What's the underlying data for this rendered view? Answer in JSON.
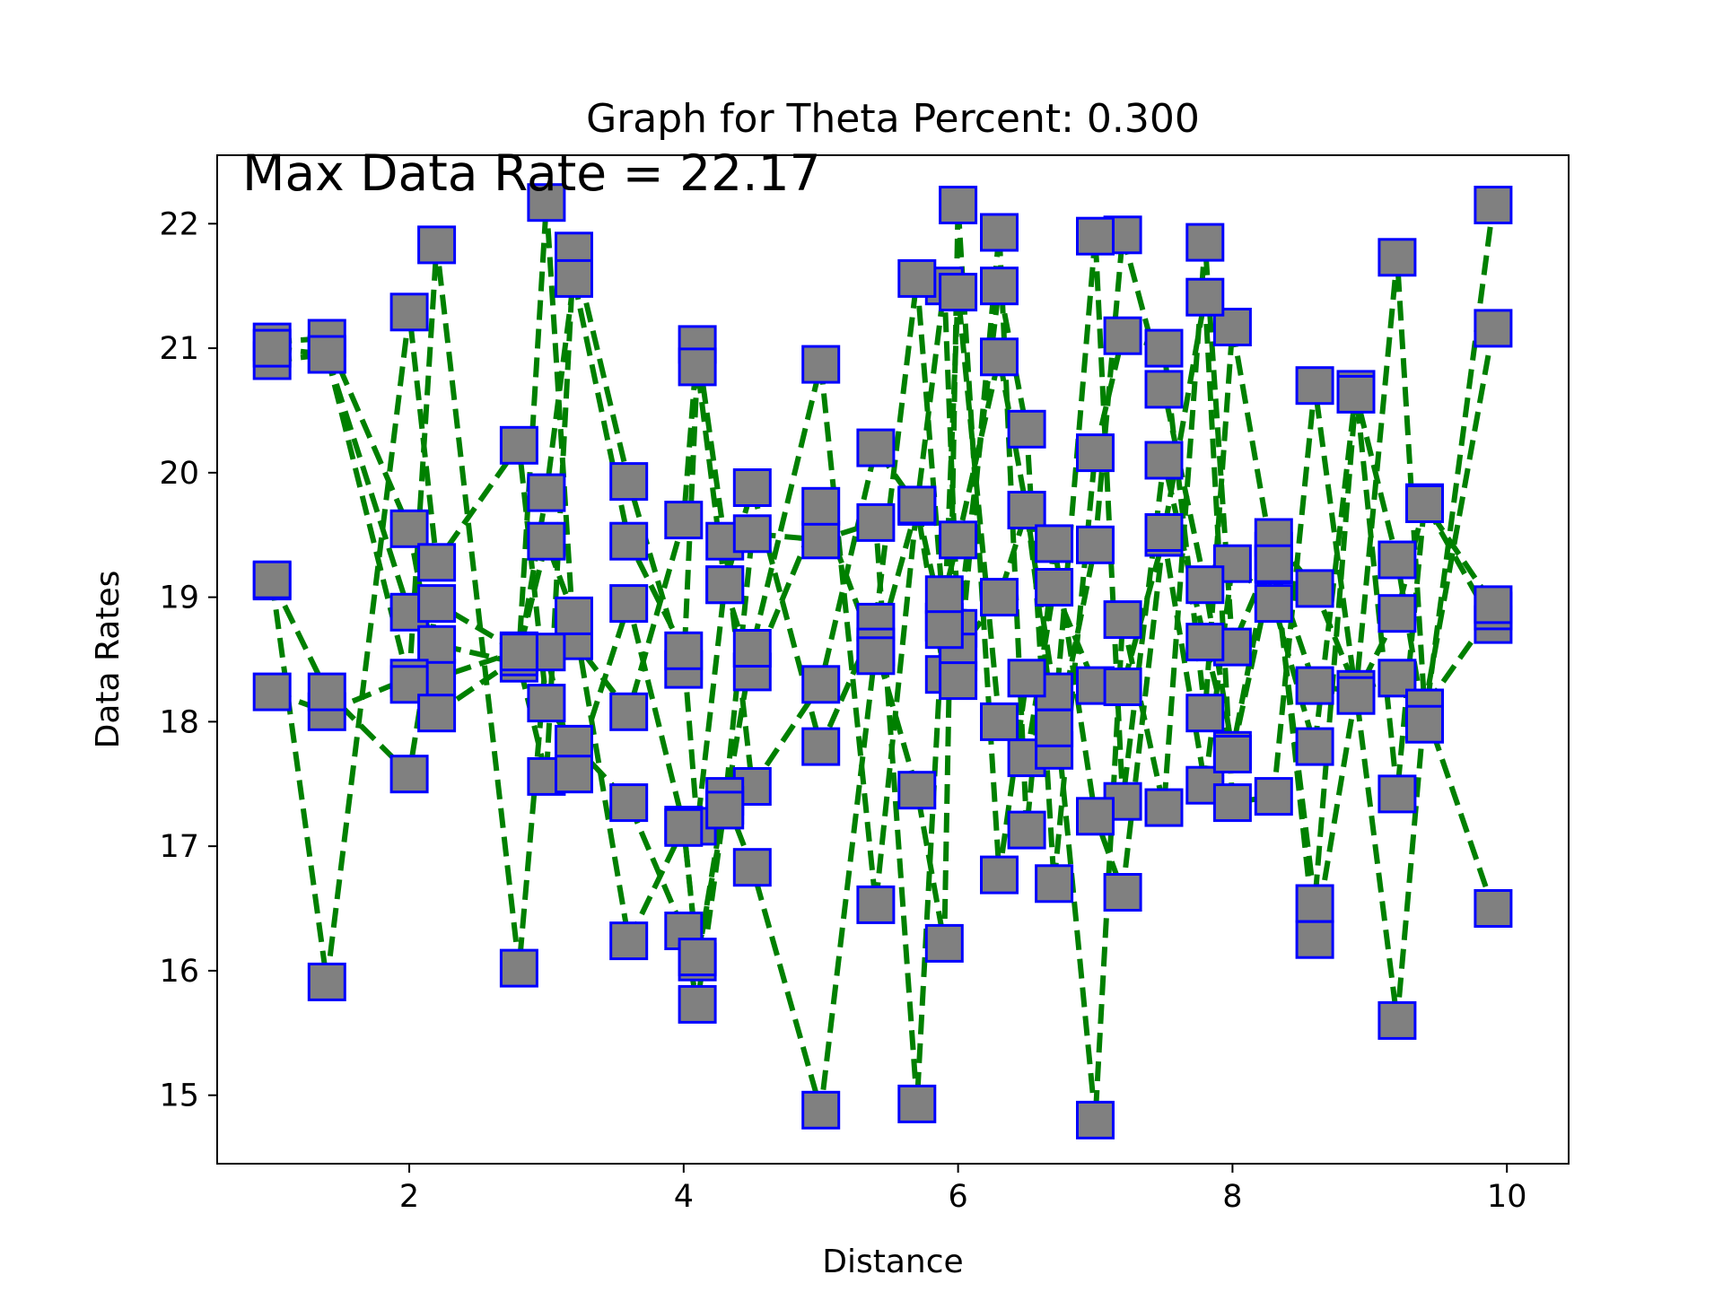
{
  "chart_data": {
    "type": "line",
    "title": "Graph for Theta Percent: 0.300",
    "xlabel": "Distance",
    "ylabel": "Data Rates",
    "annotation": "Max Data Rate = 22.17",
    "xlim": [
      0.6,
      10.45
    ],
    "ylim": [
      14.45,
      22.55
    ],
    "xticks": [
      2,
      4,
      6,
      8,
      10
    ],
    "yticks": [
      15,
      16,
      17,
      18,
      19,
      20,
      21,
      22
    ],
    "grid": false,
    "line_color": "#008000",
    "line_style": "dashed",
    "marker": "square",
    "marker_face": "#808080",
    "marker_edge": "#0000ff",
    "x": [
      1.0,
      1.4,
      2.0,
      2.2,
      2.8,
      3.0,
      3.2,
      3.6,
      4.0,
      4.1,
      4.3,
      4.5,
      5.0,
      5.4,
      5.7,
      5.9,
      6.0,
      6.3,
      6.5,
      6.7,
      7.0,
      7.2,
      7.5,
      7.8,
      8.0,
      8.3,
      8.6,
      8.9,
      9.2,
      9.4,
      9.9
    ],
    "series": [
      {
        "values": [
          21.05,
          21.08,
          19.55,
          18.35,
          18.57,
          22.17,
          18.65,
          18.08,
          19.62,
          21.03,
          19.45,
          17.48,
          18.3,
          20.2,
          19.73,
          21.5,
          18.75,
          21.5,
          20.35,
          16.7,
          20.16,
          21.1,
          21.0,
          18.07,
          21.17,
          19.26,
          18.29,
          18.24,
          21.73,
          18.11,
          21.16
        ]
      },
      {
        "values": [
          20.9,
          20.95,
          18.88,
          18.62,
          18.47,
          17.56,
          21.78,
          19.93,
          18.42,
          20.85,
          19.1,
          19.88,
          17.8,
          18.8,
          21.56,
          18.8,
          21.45,
          18.0,
          17.71,
          19.08,
          18.29,
          18.28,
          19.48,
          17.49,
          19.27,
          18.95,
          17.8,
          20.67,
          17.42,
          19.76,
          18.78
        ]
      },
      {
        "values": [
          19.13,
          15.91,
          21.29,
          19.28,
          20.22,
          18.15,
          17.82,
          17.35,
          16.32,
          15.73,
          17.33,
          19.51,
          19.46,
          19.6,
          14.93,
          19.02,
          19.46,
          20.93,
          19.7,
          18.24,
          14.8,
          18.82,
          17.31,
          21.85,
          18.6,
          19.37,
          16.25,
          18.24,
          15.6,
          18.11,
          16.5
        ]
      },
      {
        "values": [
          18.24,
          18.08,
          18.35,
          21.83,
          16.02,
          18.56,
          17.58,
          18.95,
          17.17,
          16.07,
          17.4,
          16.83,
          14.88,
          18.6,
          17.45,
          16.22,
          22.15,
          16.77,
          18.35,
          17.77,
          19.42,
          21.91,
          20.67,
          19.1,
          17.77,
          19.48,
          19.07,
          18.26,
          18.35,
          18.11,
          18.89
        ]
      },
      {
        "values": [
          21.0,
          20.95,
          18.3,
          18.07,
          18.52,
          19.84,
          21.56,
          19.45,
          18.57,
          17.16,
          19.1,
          18.4,
          19.73,
          18.53,
          19.73,
          18.38,
          18.56,
          19.0,
          19.7,
          17.95,
          21.9,
          17.36,
          20.1,
          18.64,
          17.74,
          19.27,
          16.54,
          20.63,
          19.3,
          17.98,
          22.15
        ]
      },
      {
        "values": [
          19.14,
          18.24,
          17.58,
          18.95,
          18.56,
          19.45,
          18.85,
          16.24,
          17.15,
          16.11,
          17.29,
          18.59,
          20.87,
          16.53,
          19.74,
          18.74,
          18.33,
          21.93,
          17.13,
          19.43,
          17.24,
          16.63,
          19.52,
          21.41,
          17.35,
          17.4,
          20.7,
          18.21,
          18.87,
          19.75,
          18.94
        ]
      }
    ]
  }
}
